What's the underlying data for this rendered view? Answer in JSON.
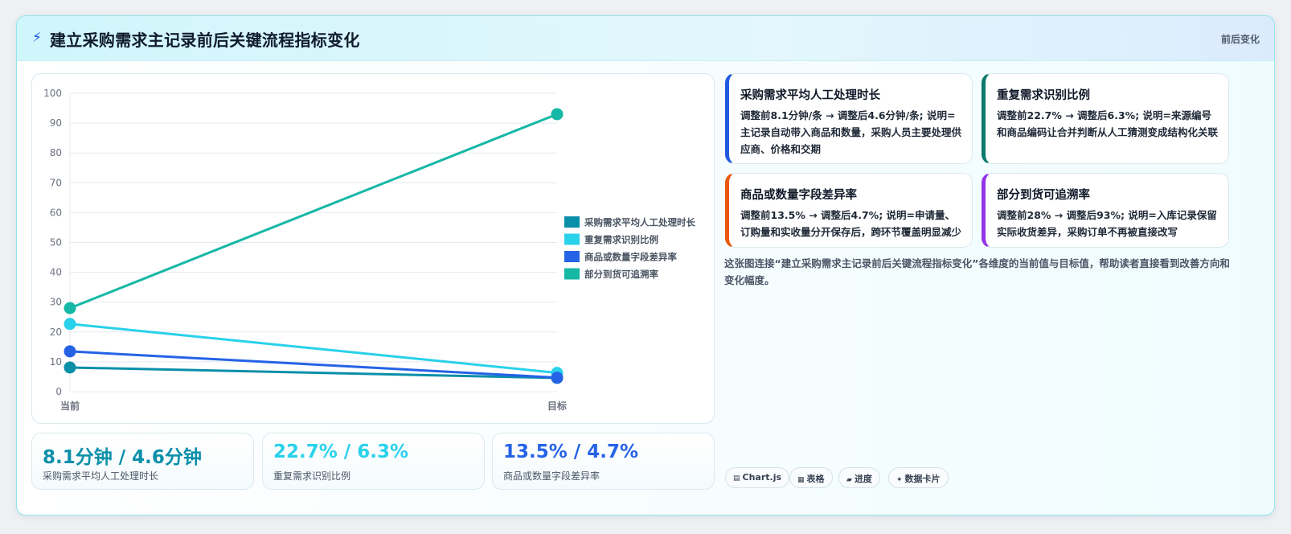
{
  "header": {
    "icon": "lightning-icon",
    "title": "建立采购需求主记录前后关键流程指标变化",
    "tag": "前后变化"
  },
  "chart_data": {
    "type": "line",
    "categories": [
      "当前",
      "目标"
    ],
    "ylim": [
      0,
      100
    ],
    "yticks": [
      0,
      10,
      20,
      30,
      40,
      50,
      60,
      70,
      80,
      90,
      100
    ],
    "grid": true,
    "legend_position": "right",
    "series": [
      {
        "name": "采购需求平均人工处理时长",
        "values": [
          8.1,
          4.6
        ],
        "color": "#0a8fa9"
      },
      {
        "name": "重复需求识别比例",
        "values": [
          22.7,
          6.3
        ],
        "color": "#2ad1ea"
      },
      {
        "name": "商品或数量字段差异率",
        "values": [
          13.5,
          4.7
        ],
        "color": "#2563e6"
      },
      {
        "name": "部分到货可追溯率",
        "values": [
          28,
          93
        ],
        "color": "#15b7a5"
      }
    ]
  },
  "stats": [
    {
      "value": "8.1分钟 / 4.6分钟",
      "label": "采购需求平均人工处理时长",
      "color": "#0a8fa9"
    },
    {
      "value": "22.7% / 6.3%",
      "label": "重复需求识别比例",
      "color": "#2ad1ea"
    },
    {
      "value": "13.5% / 4.7%",
      "label": "商品或数量字段差异率",
      "color": "#2563e6"
    }
  ],
  "cards": [
    {
      "title": "采购需求平均人工处理时长",
      "desc": "调整前8.1分钟/条 → 调整后4.6分钟/条; 说明=主记录自动带入商品和数量，采购人员主要处理供应商、价格和交期",
      "color": "#1f5be0"
    },
    {
      "title": "重复需求识别比例",
      "desc": "调整前22.7% → 调整后6.3%; 说明=来源编号和商品编码让合并判断从人工猜测变成结构化关联",
      "color": "#0d7a6c"
    },
    {
      "title": "商品或数量字段差异率",
      "desc": "调整前13.5% → 调整后4.7%; 说明=申请量、订购量和实收量分开保存后，跨环节覆盖明显减少",
      "color": "#ea580c"
    },
    {
      "title": "部分到货可追溯率",
      "desc": "调整前28% → 调整后93%; 说明=入库记录保留实际收货差异，采购订单不再被直接改写",
      "color": "#9333ea"
    }
  ],
  "caption": "这张图连接“建立采购需求主记录前后关键流程指标变化”各维度的当前值与目标值，帮助读者直接看到改善方向和变化幅度。",
  "pills": [
    {
      "icon": "chart-icon",
      "glyph": "▤",
      "label": "Chart.js"
    },
    {
      "icon": "table-icon",
      "glyph": "▦",
      "label": "表格"
    },
    {
      "icon": "progress-icon",
      "glyph": "▰",
      "label": "进度"
    },
    {
      "icon": "sparkle-icon",
      "glyph": "✦",
      "label": "数据卡片"
    }
  ]
}
